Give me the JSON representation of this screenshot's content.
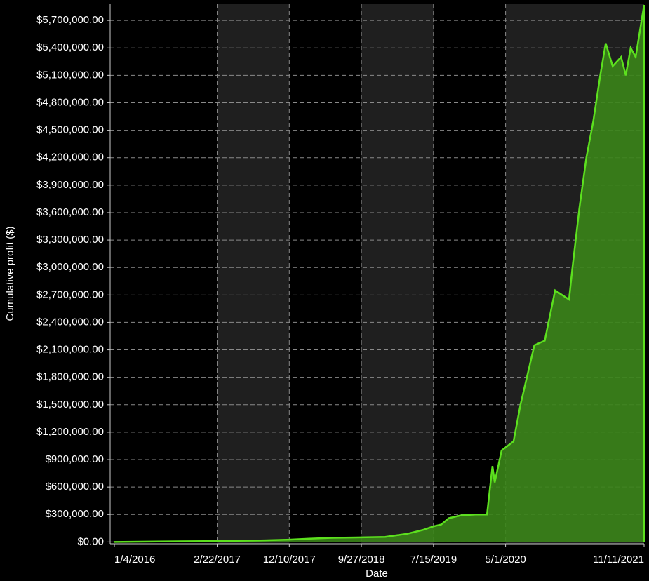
{
  "chart_data": {
    "type": "area",
    "x_label": "Date",
    "y_label": "Cumulative profit ($)",
    "x": [
      "1/4/2016",
      "7/1/2016",
      "2/22/2017",
      "8/1/2017",
      "12/10/2017",
      "3/1/2018",
      "6/1/2018",
      "9/27/2018",
      "1/1/2019",
      "4/1/2019",
      "6/1/2019",
      "7/15/2019",
      "8/15/2019",
      "9/15/2019",
      "11/1/2019",
      "1/1/2020",
      "2/16/2020",
      "3/9/2020",
      "3/18/2020",
      "4/15/2020",
      "6/2/2020",
      "6/30/2020",
      "8/25/2020",
      "10/6/2020",
      "11/17/2020",
      "1/12/2021",
      "1/26/2021",
      "2/23/2021",
      "3/23/2021",
      "4/20/2021",
      "5/18/2021",
      "6/9/2021",
      "7/7/2021",
      "8/10/2021",
      "8/29/2021",
      "9/18/2021",
      "10/8/2021",
      "11/11/2021"
    ],
    "series": [
      {
        "color": "#5ce01e",
        "fill": "#3a8418",
        "values": [
          0,
          5000,
          10000,
          15000,
          25000,
          35000,
          45000,
          50000,
          55000,
          90000,
          130000,
          170000,
          190000,
          260000,
          290000,
          300000,
          300000,
          830000,
          650000,
          1000000,
          1100000,
          1500000,
          2150000,
          2200000,
          2750000,
          2650000,
          3000000,
          3650000,
          4200000,
          4600000,
          5100000,
          5450000,
          5200000,
          5300000,
          5100000,
          5400000,
          5300000,
          5870000
        ]
      }
    ],
    "xlim": [
      "1/4/2016",
      "11/11/2021"
    ],
    "xticks": [
      "1/4/2016",
      "2/22/2017",
      "12/10/2017",
      "9/27/2018",
      "7/15/2019",
      "5/1/2020",
      "11/11/2021"
    ],
    "ylim": [
      -20000,
      5885000
    ],
    "yticks": [
      {
        "value": 0,
        "label": "$0.00"
      },
      {
        "value": 300000,
        "label": "$300,000.00"
      },
      {
        "value": 600000,
        "label": "$600,000.00"
      },
      {
        "value": 900000,
        "label": "$900,000.00"
      },
      {
        "value": 1200000,
        "label": "$1,200,000.00"
      },
      {
        "value": 1500000,
        "label": "$1,500,000.00"
      },
      {
        "value": 1800000,
        "label": "$1,800,000.00"
      },
      {
        "value": 2100000,
        "label": "$2,100,000.00"
      },
      {
        "value": 2400000,
        "label": "$2,400,000.00"
      },
      {
        "value": 2700000,
        "label": "$2,700,000.00"
      },
      {
        "value": 3000000,
        "label": "$3,000,000.00"
      },
      {
        "value": 3300000,
        "label": "$3,300,000.00"
      },
      {
        "value": 3600000,
        "label": "$3,600,000.00"
      },
      {
        "value": 3900000,
        "label": "$3,900,000.00"
      },
      {
        "value": 4200000,
        "label": "$4,200,000.00"
      },
      {
        "value": 4500000,
        "label": "$4,500,000.00"
      },
      {
        "value": 4800000,
        "label": "$4,800,000.00"
      },
      {
        "value": 5100000,
        "label": "$5,100,000.00"
      },
      {
        "value": 5400000,
        "label": "$5,400,000.00"
      },
      {
        "value": 5700000,
        "label": "$5,700,000.00"
      }
    ],
    "grid": true
  }
}
